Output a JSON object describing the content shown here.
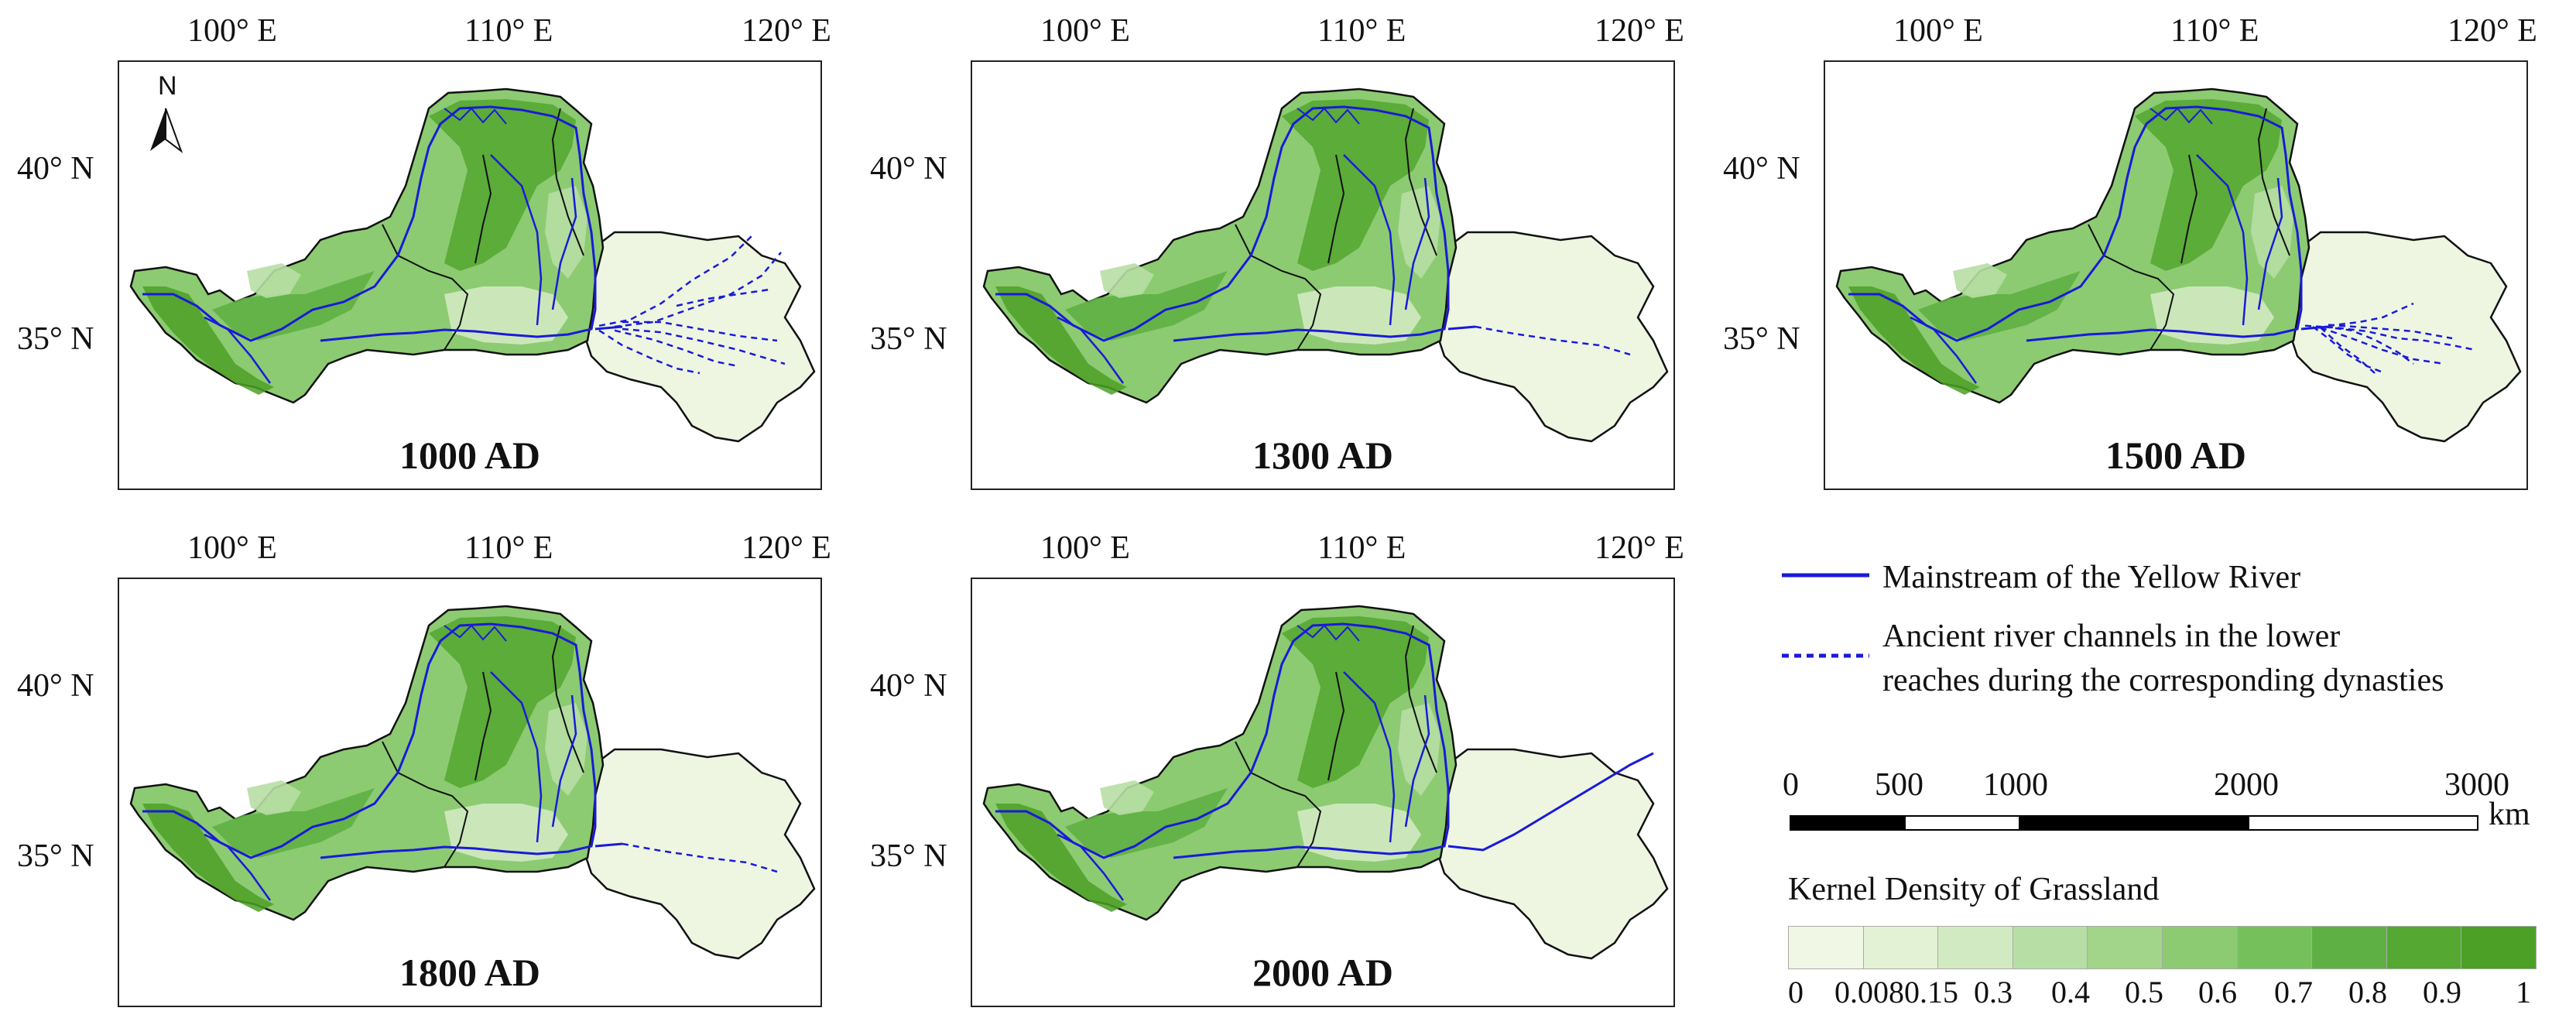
{
  "axes": {
    "longitudes": [
      "100° E",
      "110° E",
      "120° E"
    ],
    "latitudes": [
      "40° N",
      "35° N"
    ]
  },
  "north_arrow": {
    "label": "N"
  },
  "panels": [
    {
      "id": "p1000",
      "title": "1000 AD",
      "ancient_channels": "multi_north"
    },
    {
      "id": "p1300",
      "title": "1300 AD",
      "ancient_channels": "single_east"
    },
    {
      "id": "p1500",
      "title": "1500 AD",
      "ancient_channels": "multi_south"
    },
    {
      "id": "p1800",
      "title": "1800 AD",
      "ancient_channels": "single_east"
    },
    {
      "id": "p2000",
      "title": "2000 AD",
      "ancient_channels": "none"
    }
  ],
  "legend": {
    "mainstream": "Mainstream of the Yellow River",
    "ancient_line1": "Ancient river channels in the lower",
    "ancient_line2": "reaches during the corresponding dynasties",
    "scale_labels": [
      "0",
      "500",
      "1000",
      "2000",
      "3000"
    ],
    "scale_unit": "km",
    "colorbar_title": "Kernel Density of Grassland",
    "colorbar_labels": [
      "0",
      "0.008",
      "0.15",
      "0.3",
      "0.4",
      "0.5",
      "0.6",
      "0.7",
      "0.8",
      "0.9",
      "1"
    ],
    "colorbar_colors": [
      "#f0f7e4",
      "#e3f1d5",
      "#d2eac2",
      "#b7dea4",
      "#a2d48a",
      "#8ccb72",
      "#76c05c",
      "#5fb044",
      "#55a832",
      "#4ca026"
    ]
  },
  "colors": {
    "river": "#1a1ad8",
    "boundary": "#111111",
    "grass_low": "#eef6e2",
    "grass_high": "#4f9e2c"
  }
}
